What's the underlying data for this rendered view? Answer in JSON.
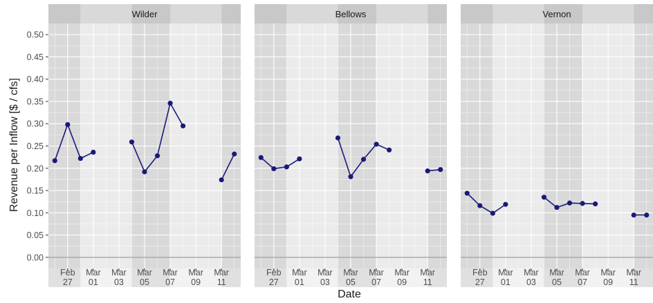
{
  "chart_data": {
    "type": "line",
    "xlabel": "Date",
    "ylabel": "Revenue per Inflow [$ / cfs]",
    "ylim": [
      -0.025,
      0.525
    ],
    "yticks": [
      0.0,
      0.05,
      0.1,
      0.15,
      0.2,
      0.25,
      0.3,
      0.35,
      0.4,
      0.45,
      0.5
    ],
    "ytick_labels": [
      "0.00",
      "0.05",
      "0.10",
      "0.15",
      "0.20",
      "0.25",
      "0.30",
      "0.35",
      "0.40",
      "0.45",
      "0.50"
    ],
    "xlim": [
      "2018-02-25T12:00",
      "2018-03-12T12:00"
    ],
    "xticks": [
      "2018-02-27",
      "2018-03-01",
      "2018-03-03",
      "2018-03-05",
      "2018-03-07",
      "2018-03-09",
      "2018-03-11"
    ],
    "xtick_labels": [
      [
        "Feb",
        "27"
      ],
      [
        "Mar",
        "01"
      ],
      [
        "Mar",
        "03"
      ],
      [
        "Mar",
        "05"
      ],
      [
        "Mar",
        "07"
      ],
      [
        "Mar",
        "09"
      ],
      [
        "Mar",
        "11"
      ]
    ],
    "weekend_bands": [
      [
        "2018-02-25T12:00",
        "2018-02-28"
      ],
      [
        "2018-03-04",
        "2018-03-07"
      ],
      [
        "2018-03-11",
        "2018-03-12T12:00"
      ]
    ],
    "grid": true,
    "line_color": "#1a1a78",
    "panel_background": "#ebebeb",
    "weekend_shade": "#d9d9d9",
    "strip_background": "#d9d9d9",
    "facets": [
      {
        "name": "Wilder",
        "segments": [
          [
            [
              "2018-02-26",
              0.217
            ],
            [
              "2018-02-27",
              0.298
            ],
            [
              "2018-02-28",
              0.222
            ],
            [
              "2018-03-01",
              0.236
            ]
          ],
          [
            [
              "2018-03-04",
              0.259
            ],
            [
              "2018-03-05",
              0.192
            ],
            [
              "2018-03-06",
              0.228
            ],
            [
              "2018-03-07",
              0.346
            ],
            [
              "2018-03-08",
              0.295
            ]
          ],
          [
            [
              "2018-03-11",
              0.174
            ],
            [
              "2018-03-12",
              0.232
            ]
          ]
        ]
      },
      {
        "name": "Bellows",
        "segments": [
          [
            [
              "2018-02-26",
              0.224
            ],
            [
              "2018-02-27",
              0.199
            ],
            [
              "2018-02-28",
              0.203
            ],
            [
              "2018-03-01",
              0.221
            ]
          ],
          [
            [
              "2018-03-04",
              0.268
            ],
            [
              "2018-03-05",
              0.181
            ],
            [
              "2018-03-06",
              0.22
            ],
            [
              "2018-03-07",
              0.254
            ],
            [
              "2018-03-08",
              0.241
            ]
          ],
          [
            [
              "2018-03-11",
              0.194
            ],
            [
              "2018-03-12",
              0.197
            ]
          ]
        ]
      },
      {
        "name": "Vernon",
        "segments": [
          [
            [
              "2018-02-26",
              0.144
            ],
            [
              "2018-02-27",
              0.116
            ],
            [
              "2018-02-28",
              0.099
            ],
            [
              "2018-03-01",
              0.119
            ]
          ],
          [
            [
              "2018-03-04",
              0.135
            ],
            [
              "2018-03-05",
              0.112
            ],
            [
              "2018-03-06",
              0.122
            ],
            [
              "2018-03-07",
              0.121
            ],
            [
              "2018-03-08",
              0.12
            ]
          ],
          [
            [
              "2018-03-11",
              0.095
            ],
            [
              "2018-03-12",
              0.095
            ]
          ]
        ]
      }
    ]
  }
}
